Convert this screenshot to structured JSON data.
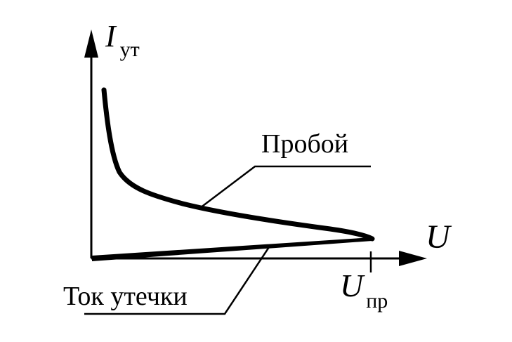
{
  "axes": {
    "y_label": "I",
    "y_label_subscript": "ут",
    "x_label": "U",
    "x_mark_label": "U",
    "x_mark_subscript": "пр"
  },
  "curves": {
    "breakdown_label": "Пробой",
    "leakage_label": "Ток утечки"
  },
  "colors": {
    "ink": "#000000",
    "background": "#ffffff"
  }
}
